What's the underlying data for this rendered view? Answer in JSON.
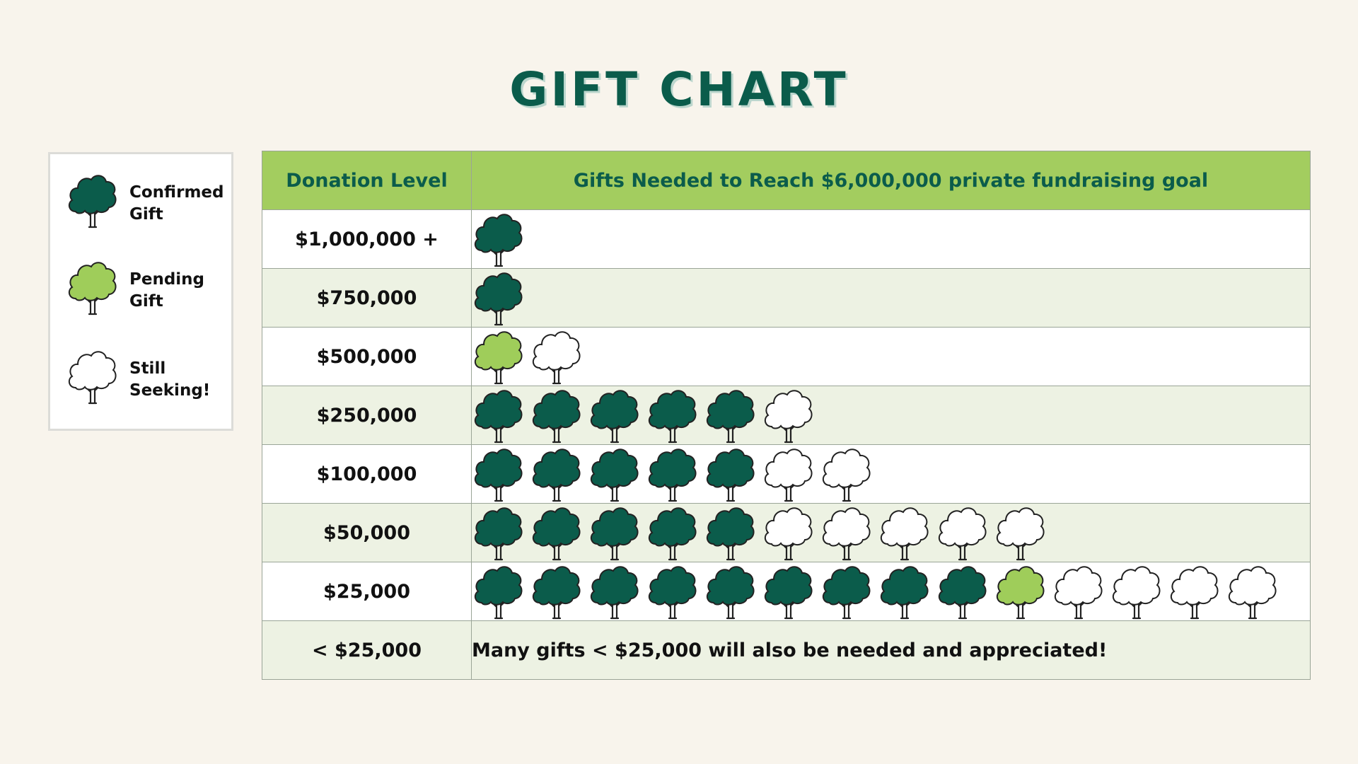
{
  "title": "GIFT CHART",
  "colors": {
    "confirmed": "#0b5c4b",
    "pending": "#9fcd5a",
    "seeking": "#ffffff",
    "header_bg": "#a3cd5f",
    "title": "#0b5c4b"
  },
  "legend": [
    {
      "status": "confirmed",
      "label": "Confirmed\nGift",
      "icon": "tree-icon"
    },
    {
      "status": "pending",
      "label": "Pending\nGift",
      "icon": "tree-icon"
    },
    {
      "status": "seeking",
      "label": "Still\nSeeking!",
      "icon": "tree-icon"
    }
  ],
  "table": {
    "header": {
      "level": "Donation Level",
      "gifts": "Gifts Needed to Reach $6,000,000 private fundraising goal"
    },
    "footer": {
      "level": "< $25,000",
      "note": "Many gifts < $25,000 will also be needed and appreciated!"
    }
  },
  "chart_data": {
    "type": "table",
    "title": "GIFT CHART",
    "columns": [
      "Donation Level",
      "Gifts Needed to Reach $6,000,000 private fundraising goal"
    ],
    "series_names": [
      "Confirmed Gift",
      "Pending Gift",
      "Still Seeking!"
    ],
    "rows": [
      {
        "level": "$1,000,000 +",
        "confirmed": 1,
        "pending": 0,
        "seeking": 0
      },
      {
        "level": "$750,000",
        "confirmed": 1,
        "pending": 0,
        "seeking": 0
      },
      {
        "level": "$500,000",
        "confirmed": 0,
        "pending": 1,
        "seeking": 1
      },
      {
        "level": "$250,000",
        "confirmed": 5,
        "pending": 0,
        "seeking": 1
      },
      {
        "level": "$100,000",
        "confirmed": 5,
        "pending": 0,
        "seeking": 2
      },
      {
        "level": "$50,000",
        "confirmed": 5,
        "pending": 0,
        "seeking": 5
      },
      {
        "level": "$25,000",
        "confirmed": 9,
        "pending": 1,
        "seeking": 4
      }
    ]
  }
}
